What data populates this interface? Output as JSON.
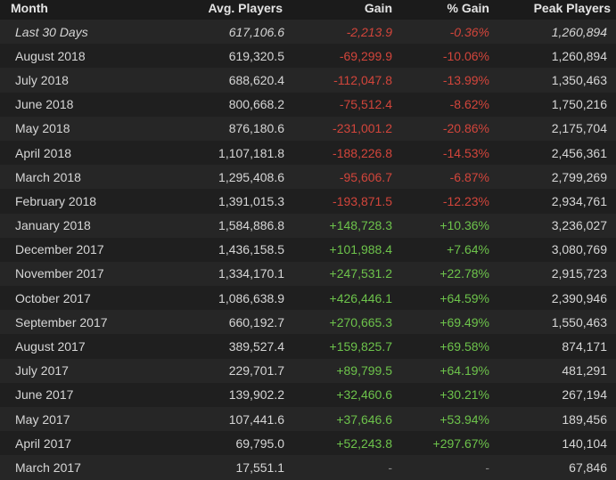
{
  "columns": {
    "month": "Month",
    "avg": "Avg. Players",
    "gain": "Gain",
    "pct": "% Gain",
    "peak": "Peak Players"
  },
  "colors": {
    "negative": "#d2453b",
    "positive": "#6dc34b",
    "neutral": "#8a8a8a"
  },
  "rows": [
    {
      "month": "Last 30 Days",
      "avg": "617,106.6",
      "gain": "-2,213.9",
      "pct": "-0.36%",
      "peak": "1,260,894",
      "trend": "neg",
      "italic": true
    },
    {
      "month": "August 2018",
      "avg": "619,320.5",
      "gain": "-69,299.9",
      "pct": "-10.06%",
      "peak": "1,260,894",
      "trend": "neg"
    },
    {
      "month": "July 2018",
      "avg": "688,620.4",
      "gain": "-112,047.8",
      "pct": "-13.99%",
      "peak": "1,350,463",
      "trend": "neg"
    },
    {
      "month": "June 2018",
      "avg": "800,668.2",
      "gain": "-75,512.4",
      "pct": "-8.62%",
      "peak": "1,750,216",
      "trend": "neg"
    },
    {
      "month": "May 2018",
      "avg": "876,180.6",
      "gain": "-231,001.2",
      "pct": "-20.86%",
      "peak": "2,175,704",
      "trend": "neg"
    },
    {
      "month": "April 2018",
      "avg": "1,107,181.8",
      "gain": "-188,226.8",
      "pct": "-14.53%",
      "peak": "2,456,361",
      "trend": "neg"
    },
    {
      "month": "March 2018",
      "avg": "1,295,408.6",
      "gain": "-95,606.7",
      "pct": "-6.87%",
      "peak": "2,799,269",
      "trend": "neg"
    },
    {
      "month": "February 2018",
      "avg": "1,391,015.3",
      "gain": "-193,871.5",
      "pct": "-12.23%",
      "peak": "2,934,761",
      "trend": "neg"
    },
    {
      "month": "January 2018",
      "avg": "1,584,886.8",
      "gain": "+148,728.3",
      "pct": "+10.36%",
      "peak": "3,236,027",
      "trend": "pos"
    },
    {
      "month": "December 2017",
      "avg": "1,436,158.5",
      "gain": "+101,988.4",
      "pct": "+7.64%",
      "peak": "3,080,769",
      "trend": "pos"
    },
    {
      "month": "November 2017",
      "avg": "1,334,170.1",
      "gain": "+247,531.2",
      "pct": "+22.78%",
      "peak": "2,915,723",
      "trend": "pos"
    },
    {
      "month": "October 2017",
      "avg": "1,086,638.9",
      "gain": "+426,446.1",
      "pct": "+64.59%",
      "peak": "2,390,946",
      "trend": "pos"
    },
    {
      "month": "September 2017",
      "avg": "660,192.7",
      "gain": "+270,665.3",
      "pct": "+69.49%",
      "peak": "1,550,463",
      "trend": "pos"
    },
    {
      "month": "August 2017",
      "avg": "389,527.4",
      "gain": "+159,825.7",
      "pct": "+69.58%",
      "peak": "874,171",
      "trend": "pos"
    },
    {
      "month": "July 2017",
      "avg": "229,701.7",
      "gain": "+89,799.5",
      "pct": "+64.19%",
      "peak": "481,291",
      "trend": "pos"
    },
    {
      "month": "June 2017",
      "avg": "139,902.2",
      "gain": "+32,460.6",
      "pct": "+30.21%",
      "peak": "267,194",
      "trend": "pos"
    },
    {
      "month": "May 2017",
      "avg": "107,441.6",
      "gain": "+37,646.6",
      "pct": "+53.94%",
      "peak": "189,456",
      "trend": "pos"
    },
    {
      "month": "April 2017",
      "avg": "69,795.0",
      "gain": "+52,243.8",
      "pct": "+297.67%",
      "peak": "140,104",
      "trend": "pos"
    },
    {
      "month": "March 2017",
      "avg": "17,551.1",
      "gain": "-",
      "pct": "-",
      "peak": "67,846",
      "trend": "na"
    }
  ]
}
